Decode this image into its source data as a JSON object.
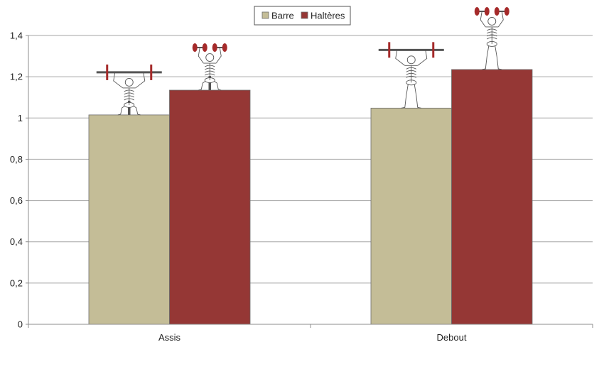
{
  "chart_data": {
    "type": "bar",
    "categories": [
      "Assis",
      "Debout"
    ],
    "series": [
      {
        "name": "Barre",
        "values": [
          1.015,
          1.048
        ],
        "color": "#c4bd97"
      },
      {
        "name": "Haltères",
        "values": [
          1.135,
          1.235
        ],
        "color": "#953735"
      }
    ],
    "ylim": [
      0,
      1.4
    ],
    "yticks": [
      "0",
      "0,2",
      "0,4",
      "0,6",
      "0,8",
      "1",
      "1,2",
      "1,4"
    ],
    "ytick_values": [
      0,
      0.2,
      0.4,
      0.6,
      0.8,
      1.0,
      1.2,
      1.4
    ],
    "grid": true,
    "legend_position": "top-center",
    "title": "",
    "xlabel": "",
    "ylabel": "",
    "bar_icons": [
      "seated-barbell-press-skeleton-icon",
      "seated-dumbbell-press-skeleton-icon",
      "standing-barbell-press-skeleton-icon",
      "standing-dumbbell-press-skeleton-icon"
    ]
  }
}
